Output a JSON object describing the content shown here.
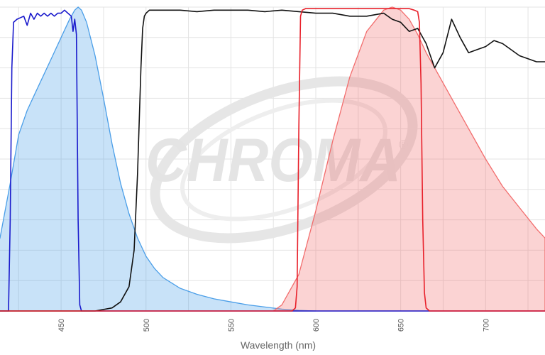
{
  "watermark": {
    "text": "CHROMA",
    "mark": "®"
  },
  "chart_data": {
    "type": "line",
    "xlabel": "Wavelength (nm)",
    "ylabel": "",
    "xlim": [
      414,
      735
    ],
    "ylim": [
      0,
      100
    ],
    "xticks": [
      450,
      500,
      550,
      600,
      650,
      700
    ],
    "grid": true,
    "series": [
      {
        "kind": "area",
        "color": "#4a9ee8",
        "x": [
          405,
          414,
          420,
          425,
          430,
          435,
          440,
          445,
          450,
          455,
          458,
          460,
          462,
          465,
          470,
          475,
          480,
          485,
          490,
          495,
          500,
          505,
          510,
          520,
          530,
          540,
          550,
          560,
          570,
          580,
          590,
          600
        ],
        "y": [
          15,
          24,
          42,
          58,
          66,
          72,
          78,
          84,
          90,
          96,
          99,
          100,
          99,
          95,
          84,
          70,
          55,
          42,
          32,
          24,
          18,
          14,
          11,
          7.5,
          5.5,
          4,
          3,
          2,
          1.3,
          0.6,
          0.2,
          0
        ]
      },
      {
        "kind": "area",
        "color": "#f26d6d",
        "x": [
          575,
          580,
          590,
          600,
          610,
          620,
          630,
          640,
          645,
          650,
          655,
          660,
          665,
          670,
          680,
          690,
          700,
          710,
          720,
          730,
          735
        ],
        "y": [
          0,
          2,
          12,
          33,
          56,
          77,
          92,
          99,
          100,
          99,
          96,
          91,
          85,
          80,
          70,
          60,
          50,
          41,
          34,
          27,
          24
        ]
      },
      {
        "kind": "line",
        "color": "#1a1acc",
        "x": [
          414,
          419,
          420,
          421,
          422,
          424,
          428,
          430,
          432,
          434,
          436,
          438,
          440,
          442,
          444,
          446,
          448,
          450,
          452,
          454,
          456,
          457,
          458,
          459,
          460,
          461,
          462,
          463,
          470,
          500,
          550,
          600,
          650,
          700,
          735
        ],
        "y": [
          0,
          0,
          30,
          80,
          95,
          96,
          97,
          94,
          98,
          96,
          98,
          97,
          98,
          97,
          98,
          97,
          98,
          98,
          99,
          98,
          97,
          92,
          96,
          91,
          30,
          2,
          0,
          0,
          0,
          0,
          0,
          0,
          0,
          0,
          0
        ]
      },
      {
        "kind": "line",
        "color": "#111111",
        "x": [
          414,
          460,
          470,
          480,
          485,
          490,
          493,
          495,
          497,
          498,
          499,
          500,
          502,
          510,
          520,
          530,
          540,
          550,
          560,
          570,
          580,
          590,
          600,
          610,
          620,
          630,
          640,
          645,
          650,
          655,
          660,
          665,
          670,
          675,
          680,
          685,
          690,
          695,
          700,
          705,
          710,
          715,
          720,
          725,
          730,
          735
        ],
        "y": [
          0,
          0,
          0,
          1,
          3,
          8,
          20,
          45,
          80,
          93,
          97,
          98,
          99,
          99,
          99,
          98.5,
          99,
          99,
          99,
          98.5,
          99,
          98.5,
          98,
          98,
          97,
          97,
          98,
          96,
          95,
          92,
          93,
          88,
          80,
          85,
          96,
          90,
          85,
          86,
          87,
          89,
          88,
          86,
          84,
          83,
          82,
          82
        ]
      },
      {
        "kind": "line",
        "color": "#e8202a",
        "x": [
          414,
          586,
          588,
          589,
          590,
          591,
          592,
          594,
          600,
          620,
          640,
          650,
          655,
          658,
          660,
          661,
          662,
          663,
          664,
          665,
          667,
          670,
          700,
          735
        ],
        "y": [
          0,
          0,
          1,
          8,
          60,
          97,
          99,
          99.5,
          99.5,
          99.5,
          99.5,
          99.5,
          99.5,
          99,
          98.5,
          95,
          75,
          30,
          6,
          1,
          0,
          0,
          0,
          0
        ]
      }
    ]
  }
}
